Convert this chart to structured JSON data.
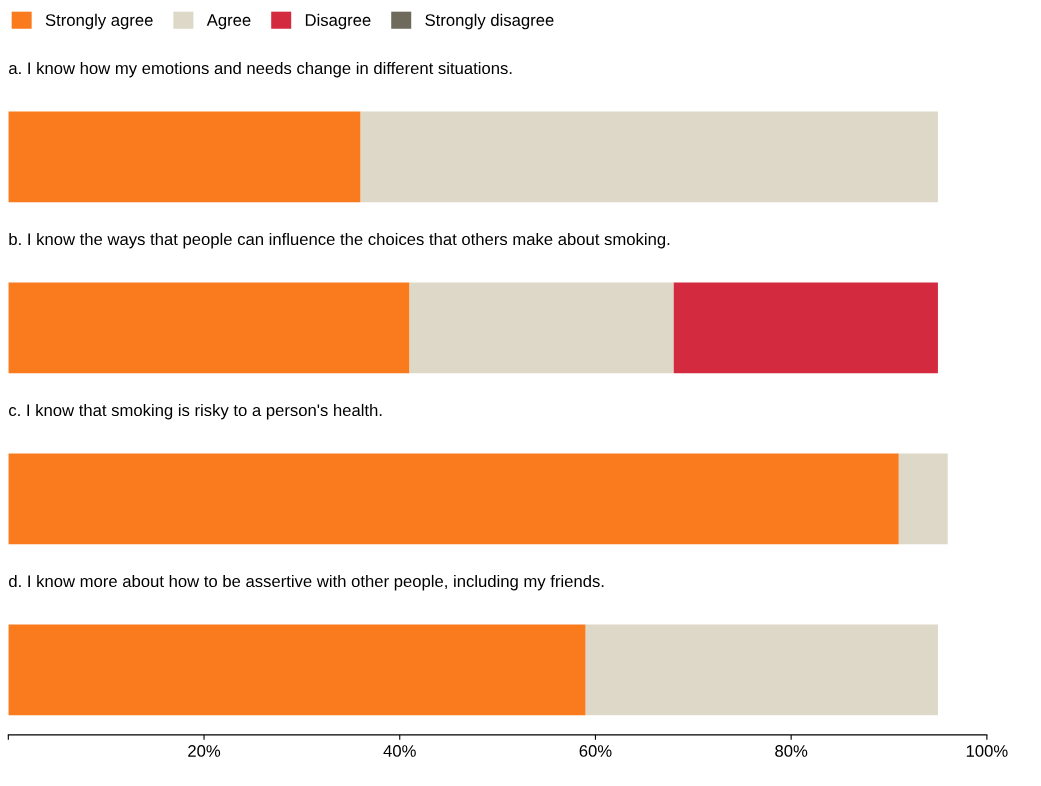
{
  "chart_data": {
    "type": "bar",
    "orientation": "horizontal",
    "stacked": true,
    "categories": [
      "a. I know how my emotions and needs change in different situations.",
      "b. I know the ways that people can influence the choices that others make about smoking.",
      "c. I know that smoking is risky to a person's health.",
      "d. I know more about how to be assertive with other people, including my friends."
    ],
    "series": [
      {
        "name": "Strongly agree",
        "color": "#fa7a1e",
        "values": [
          36,
          41,
          91,
          59
        ]
      },
      {
        "name": "Agree",
        "color": "#ddd8c8",
        "values": [
          59,
          27,
          5,
          36
        ]
      },
      {
        "name": "Disagree",
        "color": "#d42a40",
        "values": [
          0,
          27,
          0,
          0
        ]
      },
      {
        "name": "Strongly disagree",
        "color": "#6e6a5c",
        "values": [
          0,
          0,
          0,
          0
        ]
      }
    ],
    "xlim": [
      0,
      100
    ],
    "xticks": [
      {
        "value": 0,
        "label": null
      },
      {
        "value": 20,
        "label": "20%"
      },
      {
        "value": 40,
        "label": "40%"
      },
      {
        "value": 60,
        "label": "60%"
      },
      {
        "value": 80,
        "label": "80%"
      },
      {
        "value": 100,
        "label": "100%"
      }
    ],
    "grid": false,
    "legend": "top left"
  }
}
